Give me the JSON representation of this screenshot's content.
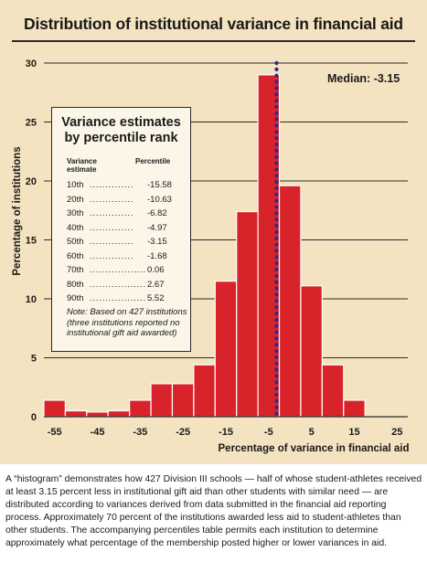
{
  "chart_data": {
    "type": "bar",
    "title": "Distribution of institutional variance in financial aid",
    "xlabel": "Percentage of variance in financial aid",
    "ylabel": "Percentage of institutions",
    "ylim": [
      0,
      30
    ],
    "xlim": [
      -57.5,
      27.5
    ],
    "bin_width": 5,
    "bin_centers": [
      -55,
      -50,
      -45,
      -40,
      -35,
      -30,
      -25,
      -20,
      -15,
      -10,
      -5,
      0,
      5,
      10,
      15,
      20
    ],
    "values": [
      1.4,
      0.5,
      0.4,
      0.5,
      1.4,
      2.8,
      2.8,
      4.4,
      11.5,
      17.4,
      29.0,
      19.6,
      11.1,
      4.4,
      1.4,
      0
    ],
    "x_ticks": [
      -55,
      -45,
      -35,
      -25,
      -15,
      -5,
      5,
      15,
      25
    ],
    "y_ticks": [
      0,
      5,
      10,
      15,
      20,
      25,
      30
    ],
    "grid": "horizontal",
    "median_value": -3.15,
    "median_label": "Median: -3.15",
    "colors": {
      "bar": "#d9232a",
      "bar_edge": "#ffffff",
      "median_line": "#2b2a8c",
      "panel": "#f3e3c0"
    }
  },
  "percentile_table": {
    "title": "Variance estimates by percentile rank",
    "col_variance": "Variance estimate",
    "col_percentile": "Percentile",
    "rows": [
      {
        "rank": "10th",
        "dots": "..............",
        "value": "-15.58"
      },
      {
        "rank": "20th",
        "dots": "..............",
        "value": "-10.63"
      },
      {
        "rank": "30th",
        "dots": "..............",
        "value": "-6.82"
      },
      {
        "rank": "40th",
        "dots": "..............",
        "value": "-4.97"
      },
      {
        "rank": "50th",
        "dots": "..............",
        "value": "-3.15"
      },
      {
        "rank": "60th",
        "dots": "..............",
        "value": "-1.68"
      },
      {
        "rank": "70th",
        "dots": "..................",
        "value": "0.06"
      },
      {
        "rank": "80th",
        "dots": "..................",
        "value": "2.67"
      },
      {
        "rank": "90th",
        "dots": "..................",
        "value": "5.52"
      }
    ],
    "note": "Note: Based on 427 institutions (three institutions reported no institutional gift aid awarded)"
  },
  "caption": "A “histogram” demonstrates how 427 Division III schools — half of whose student-athletes received at least 3.15 percent less in institutional gift aid than other students with similar need — are distributed according to variances derived from data submitted in the financial aid reporting process. Approximately 70 percent of the institutions awarded less aid to student-athletes than other students. The accompanying percentiles table permits each institution to determine approximately what percentage of the membership posted higher or lower variances in aid."
}
